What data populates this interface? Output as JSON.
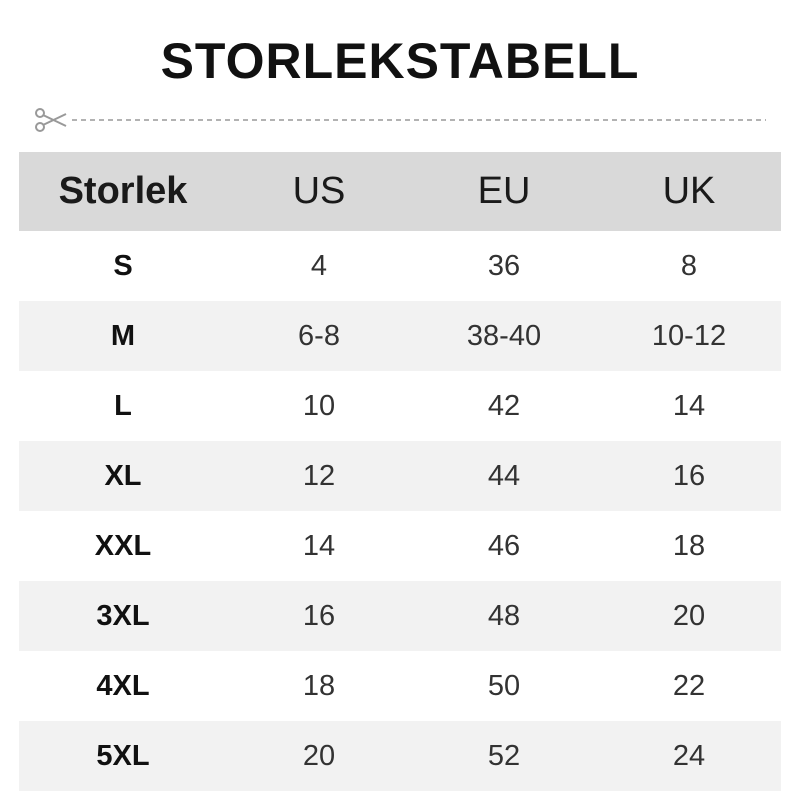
{
  "header": {
    "title": "STORLEKSTABELL"
  },
  "table": {
    "columns": [
      "Storlek",
      "US",
      "EU",
      "UK"
    ],
    "rows": [
      [
        "S",
        "4",
        "36",
        "8"
      ],
      [
        "M",
        "6-8",
        "38-40",
        "10-12"
      ],
      [
        "L",
        "10",
        "42",
        "14"
      ],
      [
        "XL",
        "12",
        "44",
        "16"
      ],
      [
        "XXL",
        "14",
        "46",
        "18"
      ],
      [
        "3XL",
        "16",
        "48",
        "20"
      ],
      [
        "4XL",
        "18",
        "50",
        "22"
      ],
      [
        "5XL",
        "20",
        "52",
        "24"
      ]
    ]
  }
}
